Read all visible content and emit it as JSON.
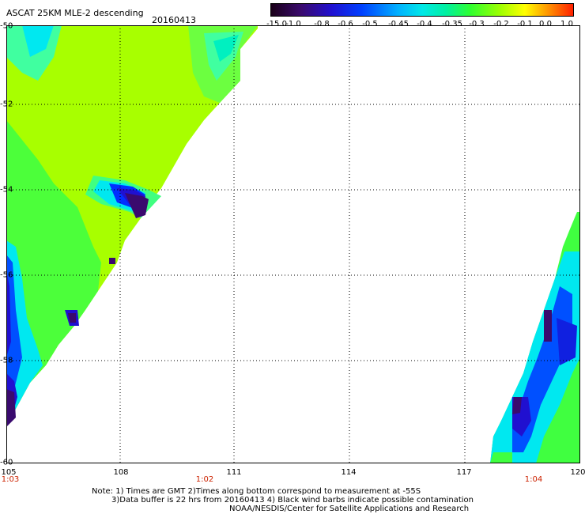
{
  "header": {
    "title": "ASCAT 25KM MLE-2 descending",
    "date": "20160413"
  },
  "colorbar": {
    "labels": [
      "-15.0",
      "-1.0",
      "-0.8",
      "-0.6",
      "-0.5",
      "-0.45",
      "-0.4",
      "-0.35",
      "-0.3",
      "-0.2",
      "-0.1",
      "0.0",
      "1.0"
    ]
  },
  "axes": {
    "y_labels": [
      "-50",
      "-52",
      "-54",
      "-56",
      "-58",
      "-60"
    ],
    "x_labels": [
      "105",
      "108",
      "111",
      "114",
      "117",
      "120"
    ],
    "time_labels": [
      "1:03",
      "1:02",
      "1:04"
    ]
  },
  "notes": {
    "line1": "Note: 1) Times are GMT 2)Times along bottom correspond to measurement at -55S",
    "line2": "3)Data buffer is 22 hrs from 20160413 4) Black wind barbs indicate possible contamination",
    "line3": "NOAA/NESDIS/Center for Satellite Applications and Research"
  },
  "colors": {
    "lime": "#a8ff00",
    "green": "#40ff40",
    "cyan": "#00e8f0",
    "blue": "#1020e0",
    "purple": "#3a0a6e",
    "time_label": "#cc2200"
  }
}
